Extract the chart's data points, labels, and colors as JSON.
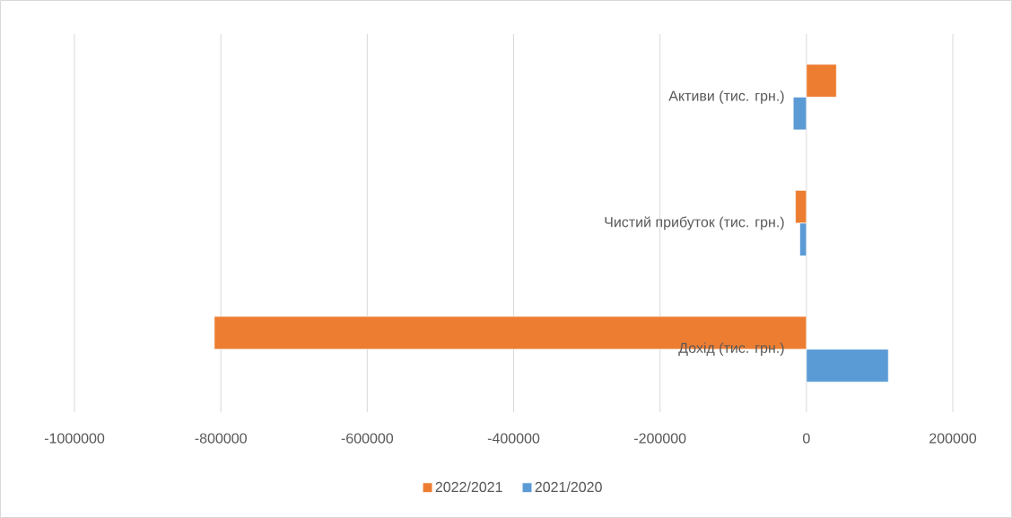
{
  "chart_data": {
    "type": "bar",
    "orientation": "horizontal",
    "categories": [
      "Активи (тис. грн.)",
      "Чистий прибуток (тис. грн.)",
      "Дохід (тис. грн.)"
    ],
    "series": [
      {
        "name": "2022/2021",
        "color": "#ed7d31",
        "values": [
          41000,
          -15000,
          -809000
        ]
      },
      {
        "name": "2021/2020",
        "color": "#5b9bd5",
        "values": [
          -18000,
          -9000,
          112000
        ]
      }
    ],
    "xlim": [
      -1000000,
      200000
    ],
    "xticks": [
      -1000000,
      -800000,
      -600000,
      -400000,
      -200000,
      0,
      200000
    ],
    "grid": "x",
    "legend": "bottom"
  }
}
